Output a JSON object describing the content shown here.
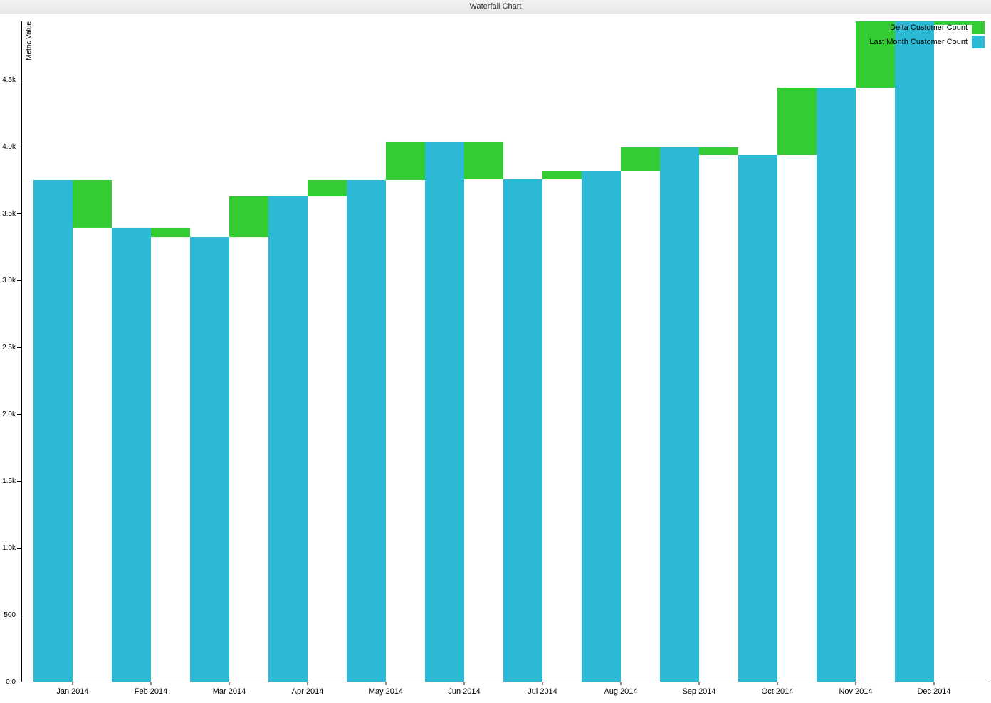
{
  "chart_data": {
    "type": "waterfall",
    "title": "Waterfall Chart",
    "y_label": "Metric Value",
    "categories": [
      "Jan 2014",
      "Feb 2014",
      "Mar 2014",
      "Apr 2014",
      "May 2014",
      "Jun 2014",
      "Jul 2014",
      "Aug 2014",
      "Sep 2014",
      "Oct 2014",
      "Nov 2014",
      "Dec 2014"
    ],
    "series": [
      {
        "name": "Delta Customer Count",
        "color": "#33cc33",
        "values": [
          -356,
          -70,
          304,
          122,
          282,
          -277,
          64,
          176,
          -59,
          505,
          559,
          -90
        ]
      },
      {
        "name": "Last Month Customer Count",
        "color": "#2cb9d5",
        "values": [
          3750,
          3394,
          3324,
          3628,
          3750,
          4032,
          3755,
          3819,
          3995,
          3936,
          4441,
          5000
        ]
      }
    ],
    "ylim": [
      0,
      4936
    ],
    "yticks": [
      {
        "value": 0,
        "label": "0.0"
      },
      500,
      {
        "value": 1000,
        "label": "1.0k"
      },
      {
        "value": 1500,
        "label": "1.5k"
      },
      {
        "value": 2000,
        "label": "2.0k"
      },
      {
        "value": 2500,
        "label": "2.5k"
      },
      {
        "value": 3000,
        "label": "3.0k"
      },
      {
        "value": 3500,
        "label": "3.5k"
      },
      {
        "value": 4000,
        "label": "4.0k"
      },
      {
        "value": 4500,
        "label": "4.5k"
      }
    ],
    "legend": "top-right"
  }
}
